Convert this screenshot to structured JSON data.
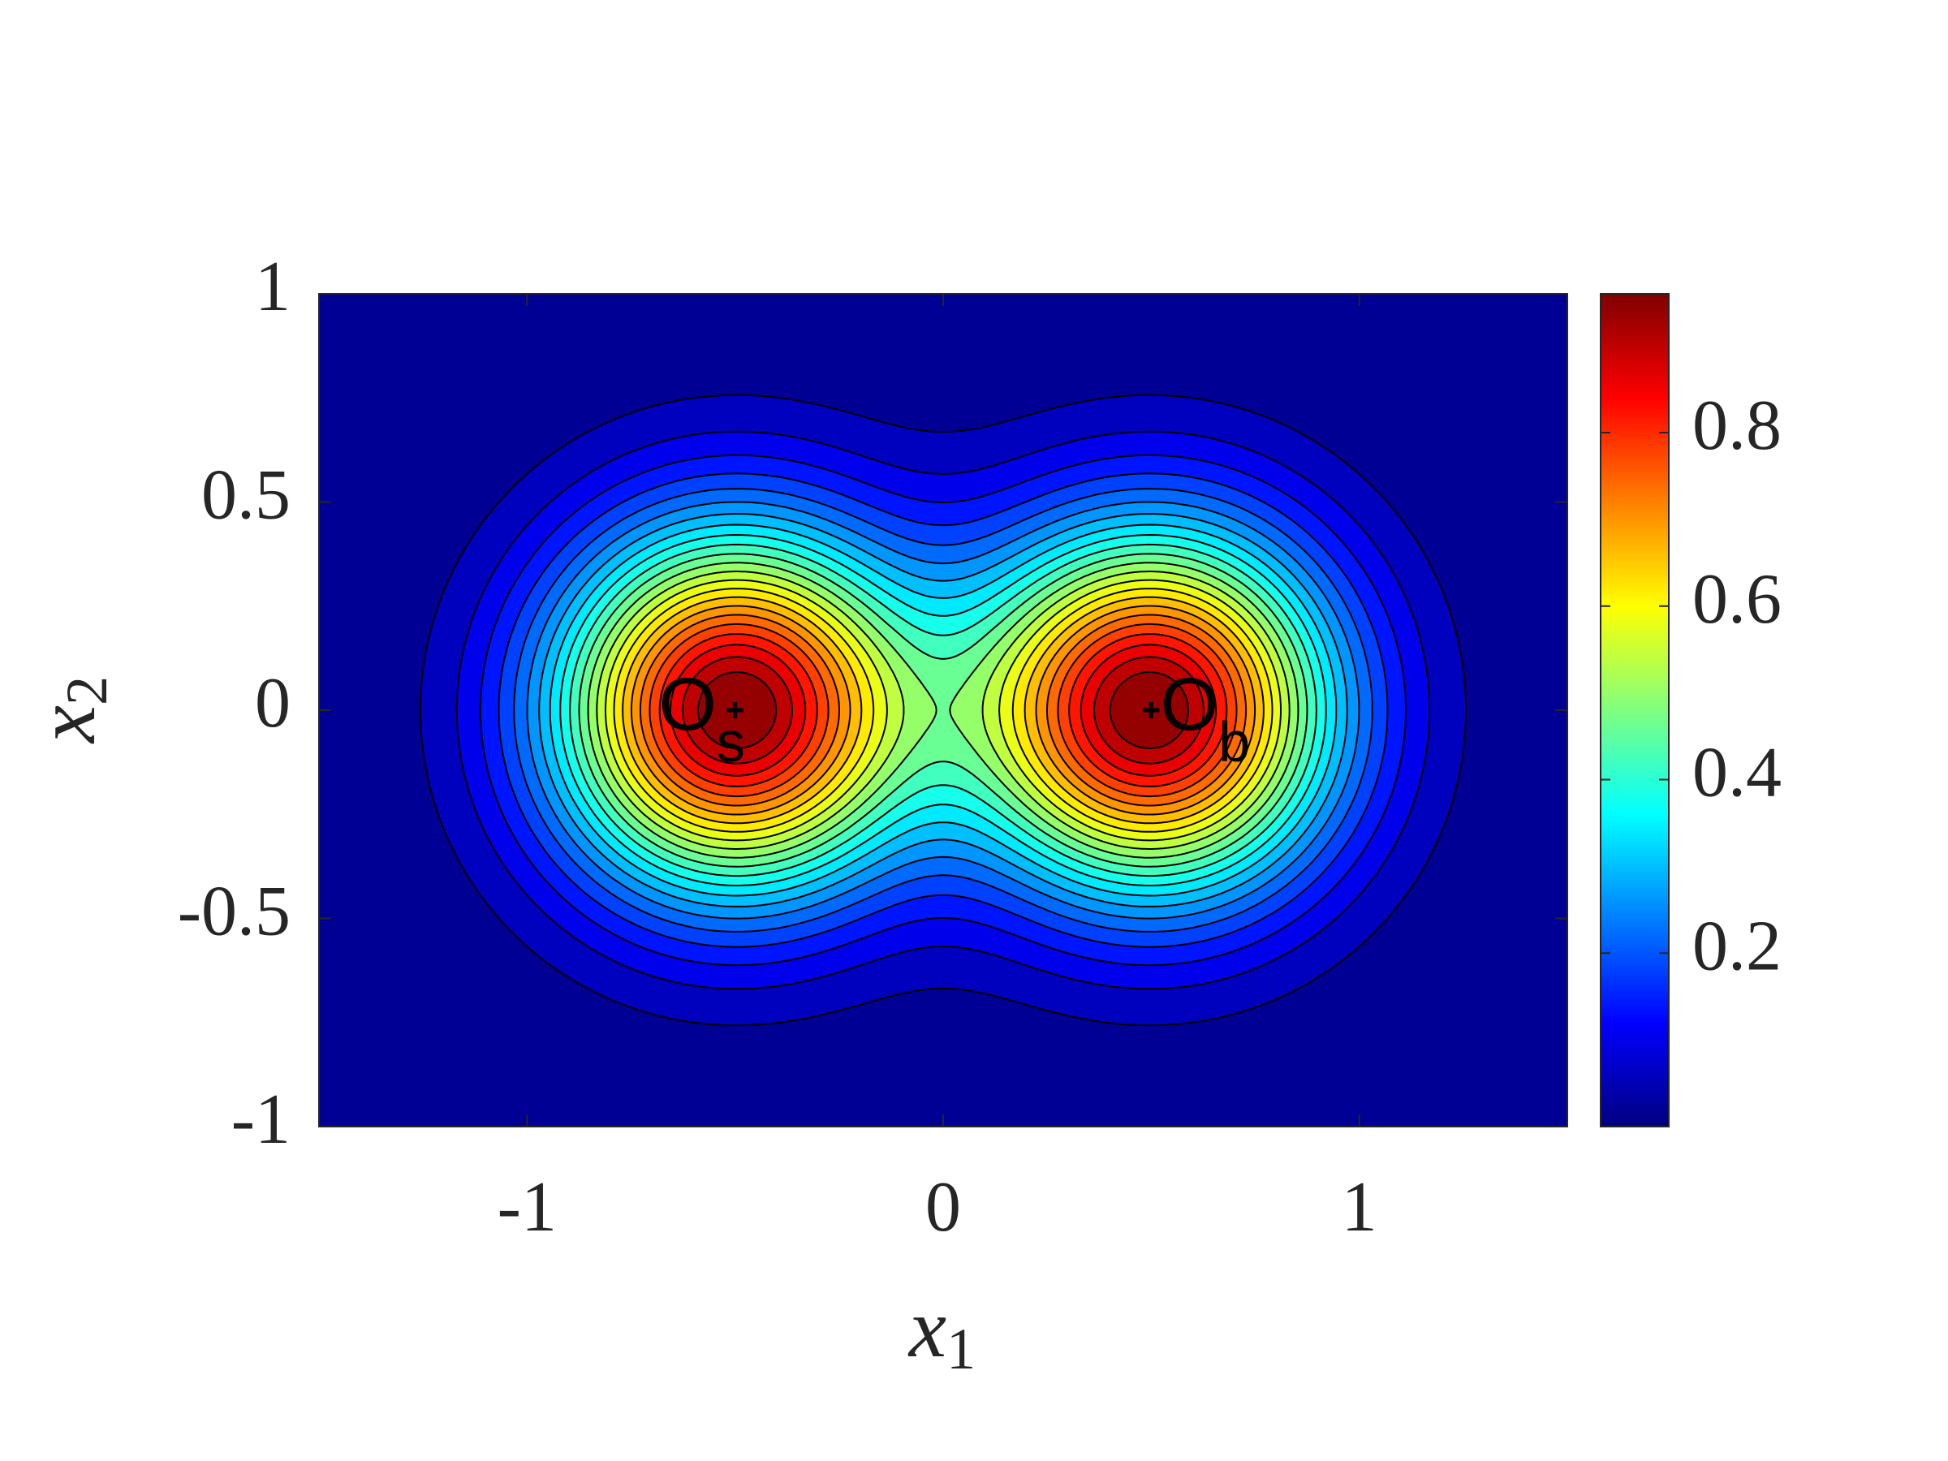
{
  "chart_data": {
    "type": "contourf",
    "x_label": {
      "text": "x",
      "subscript": "1"
    },
    "y_label": {
      "text": "x",
      "subscript": "2"
    },
    "xlim": [
      -1.5,
      1.5
    ],
    "ylim": [
      -1,
      1
    ],
    "xticks": [
      -1,
      0,
      1
    ],
    "yticks": [
      -1,
      -0.5,
      0,
      0.5,
      1
    ],
    "zlim": [
      0,
      0.96
    ],
    "colorbar_ticks": [
      0.2,
      0.4,
      0.6,
      0.8
    ],
    "colormap": "jet",
    "sigma": 0.3,
    "levels": [
      0.04,
      0.08,
      0.12,
      0.16,
      0.2,
      0.24,
      0.28,
      0.32,
      0.36,
      0.4,
      0.44,
      0.48,
      0.52,
      0.56,
      0.6,
      0.64,
      0.68,
      0.72,
      0.76,
      0.8,
      0.84,
      0.88,
      0.92
    ],
    "points": {
      "x": [
        -0.5,
        0.5
      ],
      "y": [
        0,
        0
      ]
    },
    "annotations": [
      {
        "text": "O",
        "subscript": "s",
        "x": -0.58,
        "y": 0
      },
      {
        "text": "O",
        "subscript": "b",
        "x": 0.63,
        "y": 0
      }
    ]
  }
}
